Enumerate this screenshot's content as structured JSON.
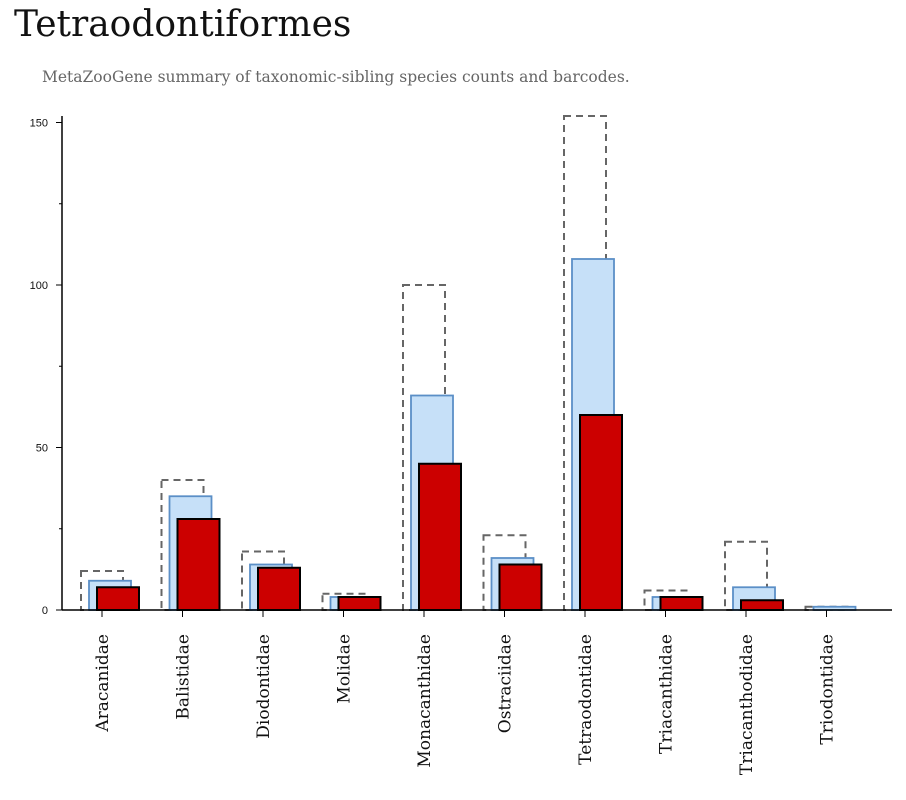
{
  "title": "Tetraodontiformes",
  "subtitle": "MetaZooGene summary of taxonomic-sibling species counts and barcodes.",
  "chart_data": {
    "type": "bar",
    "categories": [
      "Aracanidae",
      "Balistidae",
      "Diodontidae",
      "Molidae",
      "Monacanthidae",
      "Ostraciidae",
      "Tetraodontidae",
      "Triacanthidae",
      "Triacanthodidae",
      "Triodontidae"
    ],
    "series": [
      {
        "values": [
          12,
          40,
          18,
          5,
          100,
          23,
          152,
          6,
          21,
          1
        ],
        "style": "dashed-outline",
        "color": "#666666"
      },
      {
        "values": [
          9,
          35,
          14,
          4,
          66,
          16,
          108,
          4,
          7,
          1
        ],
        "style": "filled",
        "color": "#c6e0f8",
        "stroke": "#5b8fc7"
      },
      {
        "values": [
          7,
          28,
          13,
          4,
          45,
          14,
          60,
          4,
          3,
          0
        ],
        "style": "filled",
        "color": "#cc0000",
        "stroke": "#000000"
      }
    ],
    "yticks": [
      0,
      50,
      100,
      150
    ],
    "ylim": [
      0,
      152
    ],
    "xlabel": "",
    "ylabel": "",
    "grid": false,
    "legend": "none"
  }
}
